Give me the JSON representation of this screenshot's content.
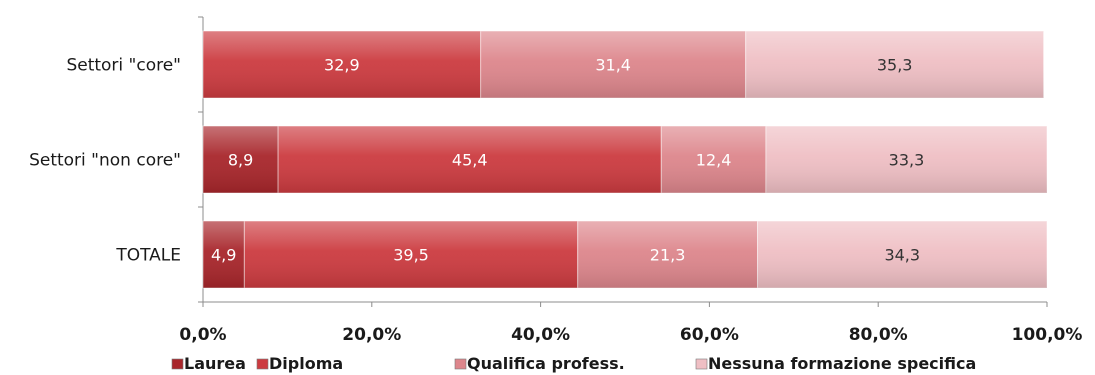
{
  "chart_data": {
    "type": "bar",
    "orientation": "horizontal",
    "stacked": true,
    "categories": [
      "Settori \"core\"",
      "Settori \"non core\"",
      "TOTALE"
    ],
    "series": [
      {
        "name": "Laurea",
        "values": [
          0,
          8.9,
          4.9
        ],
        "labels": [
          "",
          "8,9",
          "4,9"
        ],
        "color": "#a8262b"
      },
      {
        "name": "Diploma",
        "values": [
          32.9,
          45.4,
          39.5
        ],
        "labels": [
          "32,9",
          "45,4",
          "39,5"
        ],
        "color": "#cc3b40"
      },
      {
        "name": "Qualifica profess.",
        "values": [
          31.4,
          12.4,
          21.3
        ],
        "labels": [
          "31,4",
          "12,4",
          "21,3"
        ],
        "color": "#dd868c"
      },
      {
        "name": "Nessuna formazione specifica",
        "values": [
          35.3,
          33.3,
          34.3
        ],
        "labels": [
          "35,3",
          "33,3",
          "34,3"
        ],
        "color": "#efbfc4"
      }
    ],
    "xlim": [
      0,
      100
    ],
    "xticks": [
      0,
      20,
      40,
      60,
      80,
      100
    ],
    "xtick_labels": [
      "0,0%",
      "20,0%",
      "40,0%",
      "60,0%",
      "80,0%",
      "100,0%"
    ],
    "title": "",
    "xlabel": "",
    "ylabel": "",
    "legend_position": "bottom",
    "grid": false
  }
}
